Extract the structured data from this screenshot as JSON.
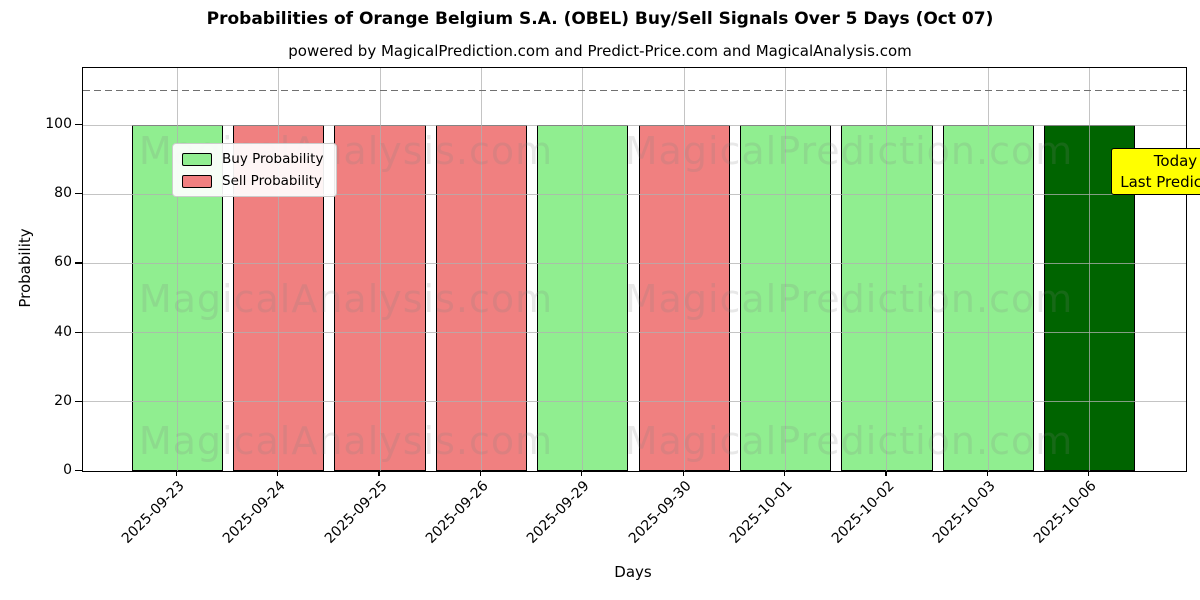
{
  "chart_data": {
    "type": "bar",
    "title": "Probabilities of Orange Belgium S.A. (OBEL) Buy/Sell Signals Over 5 Days (Oct 07)",
    "subtitle": "powered by MagicalPrediction.com and Predict-Price.com and MagicalAnalysis.com",
    "xlabel": "Days",
    "ylabel": "Probability",
    "ylim": [
      0,
      116.5
    ],
    "yticks": [
      0,
      20,
      40,
      60,
      80,
      100
    ],
    "grid": true,
    "categories": [
      "2025-09-23",
      "2025-09-24",
      "2025-09-25",
      "2025-09-26",
      "2025-09-29",
      "2025-09-30",
      "2025-10-01",
      "2025-10-02",
      "2025-10-03",
      "2025-10-06"
    ],
    "bars": [
      {
        "date": "2025-09-23",
        "value": 100,
        "signal": "buy"
      },
      {
        "date": "2025-09-24",
        "value": 100,
        "signal": "sell"
      },
      {
        "date": "2025-09-25",
        "value": 100,
        "signal": "sell"
      },
      {
        "date": "2025-09-26",
        "value": 100,
        "signal": "sell"
      },
      {
        "date": "2025-09-29",
        "value": 100,
        "signal": "buy"
      },
      {
        "date": "2025-09-30",
        "value": 100,
        "signal": "sell"
      },
      {
        "date": "2025-10-01",
        "value": 100,
        "signal": "buy"
      },
      {
        "date": "2025-10-02",
        "value": 100,
        "signal": "buy"
      },
      {
        "date": "2025-10-03",
        "value": 100,
        "signal": "buy"
      },
      {
        "date": "2025-10-06",
        "value": 100,
        "signal": "today"
      }
    ],
    "series": [
      {
        "name": "Probability",
        "values": [
          100,
          100,
          100,
          100,
          100,
          100,
          100,
          100,
          100,
          100
        ]
      }
    ],
    "colors": {
      "buy": "#90EE90",
      "sell": "#F08080",
      "today": "#006400",
      "bar_edge": "#000000",
      "grid": "#b0b0b0",
      "threshold": "#707070",
      "annotation_bg": "#ffff00",
      "watermark": "#808080"
    },
    "threshold_line": {
      "value": 110,
      "style": "dashed"
    },
    "legend": {
      "position": "upper-left",
      "entries": [
        {
          "label": "Buy Probability",
          "signal": "buy"
        },
        {
          "label": "Sell Probability",
          "signal": "sell"
        }
      ]
    },
    "annotation": {
      "lines": [
        "Today",
        "Last Prediction"
      ]
    },
    "watermarks": [
      "MagicalAnalysis.com",
      "MagicalPrediction.com"
    ]
  }
}
